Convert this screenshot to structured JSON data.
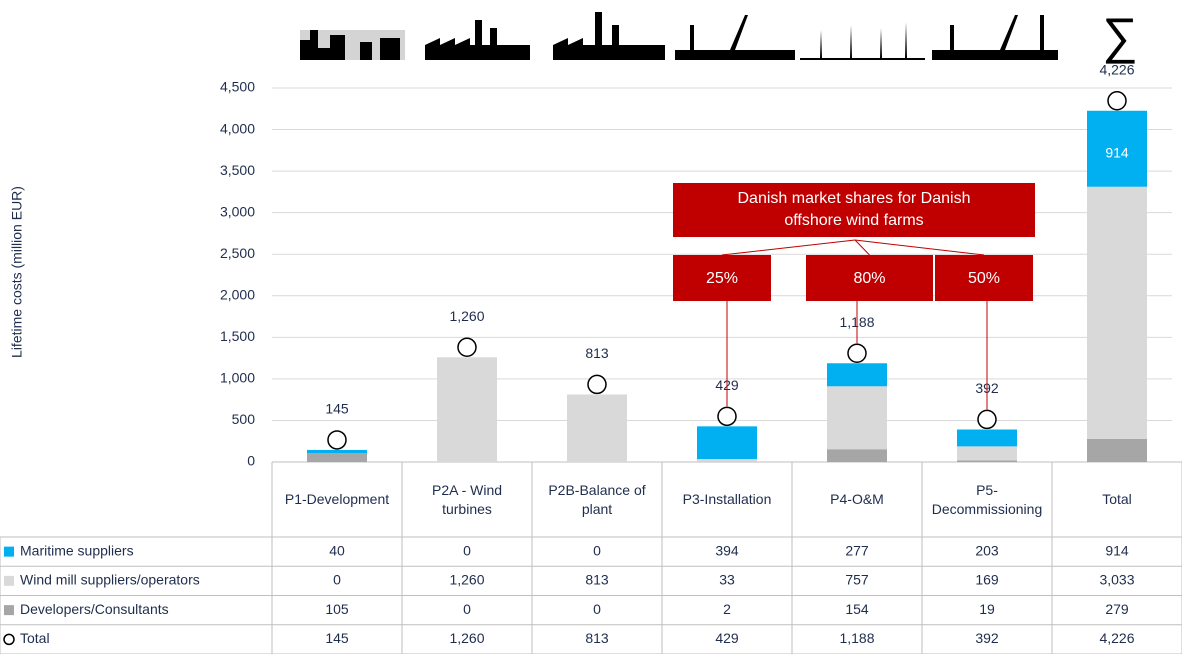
{
  "chart_data": {
    "type": "bar",
    "y_label": "Lifetime costs (million EUR)",
    "total_symbol": "∑",
    "categories": [
      "P1-Development",
      "P2A - Wind turbines",
      "P2B-Balance of plant",
      "P3-Installation",
      "P4-O&M",
      "P5-Decommissioning",
      "Total"
    ],
    "series": [
      {
        "name": "Maritime suppliers",
        "color": "#00b0f0",
        "values": [
          40,
          0,
          0,
          394,
          277,
          203,
          914
        ],
        "value_labels": [
          "40",
          "0",
          "0",
          "394",
          "277",
          "203",
          "914"
        ]
      },
      {
        "name": "Wind mill suppliers/operators",
        "color": "#d9d9d9",
        "values": [
          0,
          1260,
          813,
          33,
          757,
          169,
          3033
        ],
        "value_labels": [
          "0",
          "1,260",
          "813",
          "33",
          "757",
          "169",
          "3,033"
        ]
      },
      {
        "name": "Developers/Consultants",
        "color": "#a6a6a6",
        "values": [
          105,
          0,
          0,
          2,
          154,
          19,
          279
        ],
        "value_labels": [
          "105",
          "0",
          "0",
          "2",
          "154",
          "19",
          "279"
        ]
      },
      {
        "name": "Total",
        "color": "#ffffff",
        "values": [
          145,
          1260,
          813,
          429,
          1188,
          392,
          4226
        ],
        "value_labels": [
          "145",
          "1,260",
          "813",
          "429",
          "1,188",
          "392",
          "4,226"
        ]
      }
    ],
    "ylim": [
      0,
      4500
    ],
    "yticks": [
      0,
      500,
      {
        "value": 1000,
        "label": "1,000"
      },
      {
        "value": 1500,
        "label": "1,500"
      },
      {
        "value": 2000,
        "label": "2,000"
      },
      {
        "value": 2500,
        "label": "2,500"
      },
      {
        "value": 3000,
        "label": "3,000"
      },
      {
        "value": 3500,
        "label": "3,500"
      },
      {
        "value": 4000,
        "label": "4,000"
      },
      {
        "value": 4500,
        "label": "4,500"
      }
    ],
    "grid": true,
    "annotation": {
      "title": "Danish market shares for Danish offshore wind farms",
      "shares": [
        "25%",
        "80%",
        "50%"
      ]
    }
  }
}
